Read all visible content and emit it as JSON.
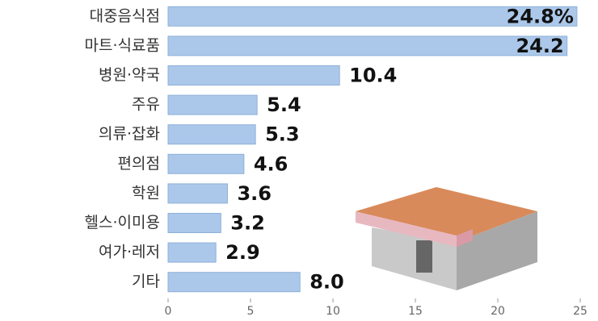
{
  "chart_data": {
    "type": "bar",
    "orientation": "horizontal",
    "categories": [
      "대중음식점",
      "마트·식료품",
      "병원·약국",
      "주유",
      "의류·잡화",
      "편의점",
      "학원",
      "헬스·이미용",
      "여가·레저",
      "기타"
    ],
    "values": [
      24.8,
      24.2,
      10.4,
      5.4,
      5.3,
      4.6,
      3.6,
      3.2,
      2.9,
      8.0
    ],
    "value_labels": [
      "24.8%",
      "24.2",
      "10.4",
      "5.4",
      "5.3",
      "4.6",
      "3.6",
      "3.2",
      "2.9",
      "8.0"
    ],
    "color": "#abc8ea",
    "xlim": [
      0,
      25
    ],
    "xticks": [
      0,
      5,
      10,
      15,
      20,
      25
    ]
  }
}
